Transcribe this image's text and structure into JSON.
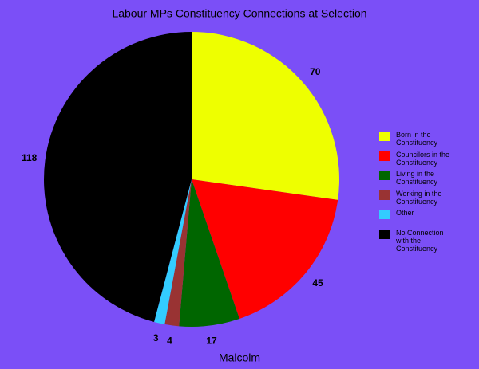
{
  "chart_data": {
    "type": "pie",
    "title": "Labour MPs Constituency Connections at Selection",
    "xlabel": "Malcolm",
    "categories": [
      "Born in the Constituency",
      "Councilors in the Constituency",
      "Living in the Constituency",
      "Working in the Constituency",
      "Other",
      "No Connection with the Constituency"
    ],
    "values": [
      70,
      45,
      17,
      4,
      3,
      118
    ],
    "colors": [
      "#eeff00",
      "#ff0000",
      "#006600",
      "#993333",
      "#33ccff",
      "#000000"
    ],
    "legend": "right"
  }
}
